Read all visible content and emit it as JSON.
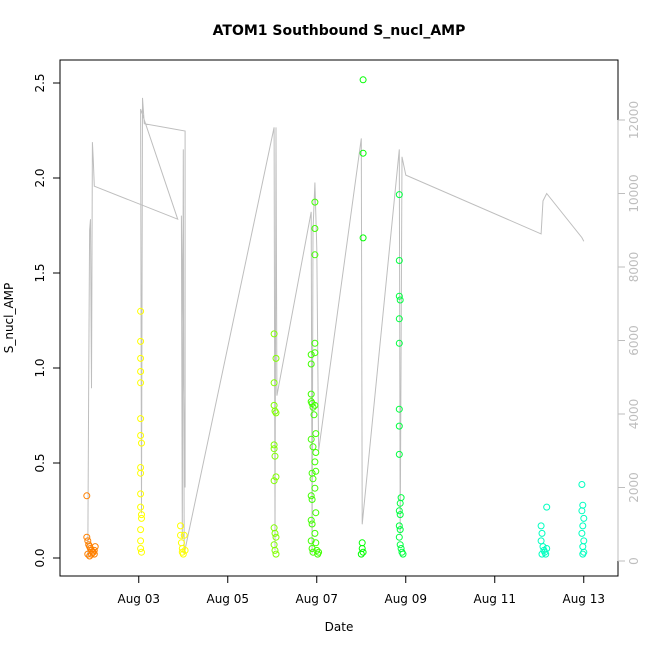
{
  "chart_data": {
    "type": "scatter",
    "title": "ATOM1 Southbound S_nucl_AMP",
    "xlabel": "Date",
    "ylabel": "S_nucl_AMP",
    "x_ticks": [
      "Aug 03",
      "Aug 05",
      "Aug 07",
      "Aug 09",
      "Aug 11",
      "Aug 13"
    ],
    "y_ticks": [
      "0.0",
      "0.5",
      "1.0",
      "1.5",
      "2.0",
      "2.5"
    ],
    "y2_ticks": [
      "0",
      "2000",
      "4000",
      "6000",
      "8000",
      "10000",
      "12000"
    ],
    "xlim": [
      "2016-08-01T12:00",
      "2016-08-13T12:00"
    ],
    "ylim": [
      0,
      2.55
    ],
    "y2lim": [
      0,
      12000
    ],
    "grid": false,
    "series": [
      {
        "color": "#FF8000",
        "points": [
          [
            "2016-08-01T20:00",
            0.32
          ],
          [
            "2016-08-01T20:00",
            0.1
          ],
          [
            "2016-08-01T20:30",
            0.08
          ],
          [
            "2016-08-01T21:00",
            0.06
          ],
          [
            "2016-08-01T21:30",
            0.05
          ],
          [
            "2016-08-01T22:00",
            0.04
          ],
          [
            "2016-08-01T22:30",
            0.03
          ],
          [
            "2016-08-01T23:00",
            0.02
          ],
          [
            "2016-08-01T23:30",
            0.02
          ],
          [
            "2016-08-02T00:00",
            0.03
          ],
          [
            "2016-08-02T00:30",
            0.05
          ],
          [
            "2016-08-01T20:30",
            0.01
          ],
          [
            "2016-08-01T21:30",
            0.0
          ],
          [
            "2016-08-01T22:30",
            0.01
          ],
          [
            "2016-08-02T00:00",
            0.01
          ]
        ]
      },
      {
        "color": "#FFFF00",
        "points": [
          [
            "2016-08-03T01:00",
            1.3
          ],
          [
            "2016-08-03T01:00",
            1.14
          ],
          [
            "2016-08-03T01:00",
            1.05
          ],
          [
            "2016-08-03T01:00",
            0.98
          ],
          [
            "2016-08-03T01:00",
            0.92
          ],
          [
            "2016-08-03T01:00",
            0.73
          ],
          [
            "2016-08-03T01:00",
            0.64
          ],
          [
            "2016-08-03T01:30",
            0.6
          ],
          [
            "2016-08-03T01:00",
            0.47
          ],
          [
            "2016-08-03T01:00",
            0.44
          ],
          [
            "2016-08-03T01:00",
            0.33
          ],
          [
            "2016-08-03T01:00",
            0.26
          ],
          [
            "2016-08-03T01:30",
            0.22
          ],
          [
            "2016-08-03T01:30",
            0.2
          ],
          [
            "2016-08-03T01:00",
            0.14
          ],
          [
            "2016-08-03T01:00",
            0.08
          ],
          [
            "2016-08-03T01:00",
            0.04
          ],
          [
            "2016-08-03T01:30",
            0.02
          ],
          [
            "2016-08-03T22:30",
            0.16
          ],
          [
            "2016-08-03T22:30",
            0.11
          ],
          [
            "2016-08-03T23:00",
            0.07
          ],
          [
            "2016-08-03T23:30",
            0.04
          ],
          [
            "2016-08-03T23:30",
            0.02
          ],
          [
            "2016-08-04T00:00",
            0.01
          ],
          [
            "2016-08-04T00:30",
            0.11
          ],
          [
            "2016-08-04T01:00",
            0.03
          ]
        ]
      },
      {
        "color": "#80FF00",
        "points": [
          [
            "2016-08-06T01:00",
            1.18
          ],
          [
            "2016-08-06T02:00",
            1.05
          ],
          [
            "2016-08-06T01:00",
            0.92
          ],
          [
            "2016-08-06T01:00",
            0.8
          ],
          [
            "2016-08-06T01:30",
            0.77
          ],
          [
            "2016-08-06T02:00",
            0.76
          ],
          [
            "2016-08-06T01:00",
            0.59
          ],
          [
            "2016-08-06T01:00",
            0.57
          ],
          [
            "2016-08-06T01:30",
            0.53
          ],
          [
            "2016-08-06T02:00",
            0.42
          ],
          [
            "2016-08-06T01:00",
            0.4
          ],
          [
            "2016-08-06T01:00",
            0.15
          ],
          [
            "2016-08-06T01:30",
            0.12
          ],
          [
            "2016-08-06T02:00",
            0.1
          ],
          [
            "2016-08-06T01:00",
            0.06
          ],
          [
            "2016-08-06T01:30",
            0.03
          ],
          [
            "2016-08-06T02:00",
            0.01
          ]
        ]
      },
      {
        "color": "#40FF00",
        "points": [
          [
            "2016-08-06T21:00",
            1.07
          ],
          [
            "2016-08-06T21:00",
            1.02
          ],
          [
            "2016-08-06T21:00",
            0.86
          ],
          [
            "2016-08-06T21:00",
            0.82
          ],
          [
            "2016-08-06T21:30",
            0.81
          ],
          [
            "2016-08-06T22:00",
            0.79
          ],
          [
            "2016-08-06T22:30",
            0.75
          ],
          [
            "2016-08-06T21:00",
            0.62
          ],
          [
            "2016-08-06T22:00",
            0.58
          ],
          [
            "2016-08-06T21:30",
            0.44
          ],
          [
            "2016-08-06T22:00",
            0.41
          ],
          [
            "2016-08-06T21:00",
            0.32
          ],
          [
            "2016-08-06T21:30",
            0.3
          ],
          [
            "2016-08-06T21:00",
            0.19
          ],
          [
            "2016-08-06T21:30",
            0.17
          ],
          [
            "2016-08-06T21:00",
            0.08
          ],
          [
            "2016-08-06T21:30",
            0.04
          ],
          [
            "2016-08-06T22:00",
            0.02
          ],
          [
            "2016-08-06T23:00",
            1.88
          ],
          [
            "2016-08-06T23:00",
            1.74
          ],
          [
            "2016-08-06T23:00",
            1.6
          ],
          [
            "2016-08-06T23:00",
            1.13
          ],
          [
            "2016-08-06T23:00",
            1.08
          ],
          [
            "2016-08-06T23:00",
            0.8
          ],
          [
            "2016-08-06T23:30",
            0.65
          ],
          [
            "2016-08-06T23:30",
            0.55
          ],
          [
            "2016-08-06T23:00",
            0.5
          ],
          [
            "2016-08-06T23:30",
            0.45
          ],
          [
            "2016-08-06T23:00",
            0.36
          ],
          [
            "2016-08-06T23:30",
            0.23
          ],
          [
            "2016-08-06T23:00",
            0.12
          ],
          [
            "2016-08-06T23:30",
            0.07
          ],
          [
            "2016-08-07T00:00",
            0.03
          ],
          [
            "2016-08-07T00:30",
            0.01
          ],
          [
            "2016-08-07T01:00",
            0.02
          ]
        ]
      },
      {
        "color": "#00FF00",
        "points": [
          [
            "2016-08-08T01:00",
            2.53
          ],
          [
            "2016-08-08T01:00",
            2.14
          ],
          [
            "2016-08-08T01:00",
            1.69
          ],
          [
            "2016-08-08T00:30",
            0.07
          ],
          [
            "2016-08-08T00:30",
            0.04
          ],
          [
            "2016-08-08T01:00",
            0.02
          ],
          [
            "2016-08-08T00:00",
            0.01
          ]
        ]
      },
      {
        "color": "#00FF40",
        "points": [
          [
            "2016-08-08T20:30",
            1.92
          ],
          [
            "2016-08-08T20:30",
            1.57
          ],
          [
            "2016-08-08T20:30",
            1.38
          ],
          [
            "2016-08-08T21:00",
            1.36
          ],
          [
            "2016-08-08T20:30",
            1.26
          ],
          [
            "2016-08-08T20:30",
            1.13
          ],
          [
            "2016-08-08T20:30",
            0.78
          ],
          [
            "2016-08-08T20:30",
            0.69
          ],
          [
            "2016-08-08T20:30",
            0.54
          ],
          [
            "2016-08-08T21:00",
            0.28
          ],
          [
            "2016-08-08T21:30",
            0.31
          ],
          [
            "2016-08-08T20:30",
            0.24
          ],
          [
            "2016-08-08T21:00",
            0.22
          ],
          [
            "2016-08-08T20:30",
            0.16
          ],
          [
            "2016-08-08T21:00",
            0.14
          ],
          [
            "2016-08-08T20:30",
            0.1
          ],
          [
            "2016-08-08T21:00",
            0.06
          ],
          [
            "2016-08-08T21:30",
            0.04
          ],
          [
            "2016-08-08T22:00",
            0.02
          ],
          [
            "2016-08-08T22:30",
            0.01
          ]
        ]
      },
      {
        "color": "#00FFC0",
        "points": [
          [
            "2016-08-12T01:00",
            0.16
          ],
          [
            "2016-08-12T01:30",
            0.12
          ],
          [
            "2016-08-12T01:00",
            0.08
          ],
          [
            "2016-08-12T02:00",
            0.05
          ],
          [
            "2016-08-12T02:30",
            0.03
          ],
          [
            "2016-08-12T03:00",
            0.02
          ],
          [
            "2016-08-12T04:00",
            0.26
          ],
          [
            "2016-08-12T04:00",
            0.04
          ],
          [
            "2016-08-12T01:30",
            0.01
          ],
          [
            "2016-08-12T03:30",
            0.01
          ],
          [
            "2016-08-12T23:00",
            0.38
          ],
          [
            "2016-08-12T23:30",
            0.27
          ],
          [
            "2016-08-12T23:00",
            0.24
          ],
          [
            "2016-08-13T00:00",
            0.2
          ],
          [
            "2016-08-12T23:30",
            0.16
          ],
          [
            "2016-08-12T23:00",
            0.12
          ],
          [
            "2016-08-13T00:00",
            0.08
          ],
          [
            "2016-08-12T23:30",
            0.05
          ],
          [
            "2016-08-13T00:00",
            0.02
          ],
          [
            "2016-08-12T23:30",
            0.01
          ]
        ]
      }
    ],
    "secondary_trace": {
      "color": "#bebebe",
      "axis": "right",
      "points": [
        [
          "2016-08-01T20:30",
          100
        ],
        [
          "2016-08-01T21:00",
          4900
        ],
        [
          "2016-08-01T21:30",
          9000
        ],
        [
          "2016-08-01T22:00",
          9300
        ],
        [
          "2016-08-01T22:30",
          4700
        ],
        [
          "2016-08-01T23:00",
          11400
        ],
        [
          "2016-08-01T23:30",
          10900
        ],
        [
          "2016-08-02T00:00",
          10200
        ],
        [
          "2016-08-03T21:00",
          9300
        ],
        [
          "2016-08-03T01:00",
          12300
        ],
        [
          "2016-08-03T01:30",
          1300
        ],
        [
          "2016-08-03T02:00",
          12600
        ],
        [
          "2016-08-03T03:00",
          11900
        ],
        [
          "2016-08-04T01:00",
          11700
        ],
        [
          "2016-08-04T01:00",
          2000
        ],
        [
          "2016-08-03T23:00",
          9400
        ],
        [
          "2016-08-03T23:30",
          600
        ],
        [
          "2016-08-04T00:00",
          11200
        ],
        [
          "2016-08-04T00:30",
          200
        ],
        [
          "2016-08-06T01:00",
          11800
        ],
        [
          "2016-08-06T01:30",
          300
        ],
        [
          "2016-08-06T02:00",
          11800
        ],
        [
          "2016-08-06T02:30",
          4500
        ],
        [
          "2016-08-06T21:00",
          9500
        ],
        [
          "2016-08-06T21:30",
          200
        ],
        [
          "2016-08-06T22:00",
          9000
        ],
        [
          "2016-08-06T23:00",
          10300
        ],
        [
          "2016-08-07T00:00",
          8500
        ],
        [
          "2016-08-07T01:00",
          3000
        ],
        [
          "2016-08-08T00:00",
          11500
        ],
        [
          "2016-08-08T00:30",
          1000
        ],
        [
          "2016-08-08T20:30",
          11200
        ],
        [
          "2016-08-08T21:00",
          700
        ],
        [
          "2016-08-08T22:00",
          11000
        ],
        [
          "2016-08-09T00:00",
          10500
        ],
        [
          "2016-08-12T01:00",
          8900
        ],
        [
          "2016-08-12T02:00",
          9800
        ],
        [
          "2016-08-12T04:00",
          10000
        ],
        [
          "2016-08-12T23:00",
          8800
        ],
        [
          "2016-08-13T00:00",
          8700
        ]
      ]
    }
  }
}
